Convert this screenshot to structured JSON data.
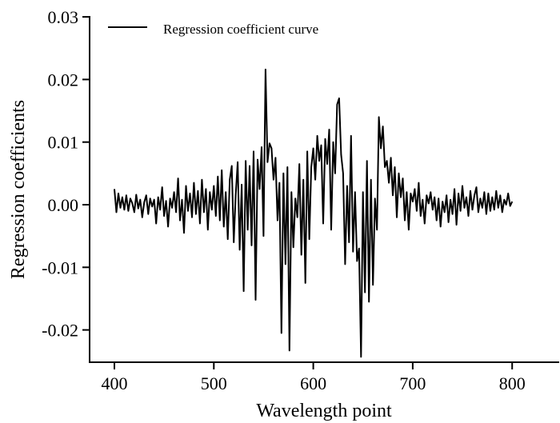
{
  "chart_data": {
    "type": "line",
    "title": "",
    "xlabel": "Wavelength point",
    "ylabel": "Regression coefficients",
    "xlim": [
      378,
      850
    ],
    "ylim": [
      -0.0252,
      0.03
    ],
    "xticks": [
      400,
      500,
      600,
      700,
      800
    ],
    "xtick_labels": [
      "400",
      "500",
      "600",
      "700",
      "800"
    ],
    "yticks": [
      0.03,
      0.02,
      0.01,
      0.0,
      -0.01,
      -0.02
    ],
    "ytick_labels": [
      "0.03",
      "0.02",
      "0.01",
      "0.00",
      "-0.01",
      "-0.02"
    ],
    "grid": false,
    "legend": {
      "position": "top-left",
      "entries": [
        "Regression coefficient curve"
      ]
    },
    "series": [
      {
        "name": "Regression coefficient curve",
        "color": "#000000",
        "x_start": 400,
        "x_step": 2,
        "values": [
          0.0025,
          -0.0012,
          0.0018,
          -0.0005,
          0.0012,
          -0.0008,
          0.0015,
          -0.001,
          0.001,
          0.0002,
          -0.0012,
          0.0016,
          -0.0006,
          0.0008,
          -0.002,
          0.0004,
          0.0015,
          -0.0015,
          0.001,
          -0.0003,
          0.0008,
          -0.003,
          0.0012,
          -0.0008,
          0.0028,
          -0.0018,
          0.0006,
          -0.0035,
          0.001,
          -0.0005,
          0.002,
          -0.0012,
          0.0042,
          -0.0025,
          0.0008,
          -0.0045,
          0.003,
          -0.001,
          0.0018,
          -0.002,
          0.0035,
          -0.0015,
          0.0022,
          -0.003,
          0.004,
          -0.0012,
          0.0025,
          -0.004,
          0.002,
          -0.0008,
          0.003,
          -0.0018,
          0.0045,
          -0.0025,
          0.0055,
          -0.0035,
          0.002,
          -0.0055,
          0.004,
          0.0062,
          -0.006,
          0.0015,
          0.0068,
          -0.0072,
          0.0032,
          -0.0138,
          0.007,
          -0.004,
          0.0062,
          -0.0065,
          0.0085,
          -0.0152,
          0.0072,
          0.0025,
          0.0092,
          -0.005,
          0.0216,
          0.0068,
          0.0098,
          0.009,
          0.004,
          0.0075,
          -0.0025,
          0.0035,
          -0.0205,
          0.005,
          -0.0095,
          0.006,
          -0.0233,
          0.002,
          -0.0068,
          0.001,
          -0.002,
          0.0065,
          -0.008,
          0.004,
          -0.0125,
          0.0085,
          -0.0055,
          0.006,
          0.009,
          0.004,
          0.011,
          0.007,
          0.0095,
          -0.003,
          0.0105,
          0.0065,
          0.012,
          -0.004,
          0.01,
          0.005,
          0.016,
          0.017,
          0.008,
          0.005,
          -0.0095,
          0.003,
          -0.006,
          0.011,
          -0.0075,
          0.002,
          -0.009,
          -0.007,
          -0.0243,
          0.002,
          -0.014,
          0.007,
          -0.0155,
          0.004,
          -0.0128,
          0.001,
          -0.004,
          0.014,
          0.009,
          0.0125,
          0.006,
          0.007,
          0.0035,
          0.0075,
          0.0015,
          0.006,
          -0.002,
          0.005,
          0.0012,
          0.0042,
          -0.0025,
          0.002,
          -0.004,
          0.0018,
          0.0005,
          0.0025,
          -0.001,
          0.0035,
          -0.0018,
          0.0008,
          -0.003,
          0.0015,
          0.0002,
          0.002,
          -0.0008,
          0.0012,
          -0.0025,
          0.001,
          -0.0035,
          0.0005,
          -0.0012,
          0.0015,
          -0.0028,
          0.0008,
          -0.0015,
          0.0025,
          -0.0032,
          0.0018,
          -0.001,
          0.003,
          -0.0005,
          0.0012,
          -0.0018,
          0.0022,
          -0.0008,
          0.0015,
          0.0028,
          -0.0012,
          0.001,
          -0.0005,
          0.002,
          -0.0015,
          0.0018,
          -0.001,
          0.0012,
          -0.0008,
          0.0022,
          -0.0005,
          0.0015,
          -0.0012,
          0.0008,
          0.0,
          0.0018,
          -0.0002,
          0.0005
        ]
      }
    ]
  }
}
